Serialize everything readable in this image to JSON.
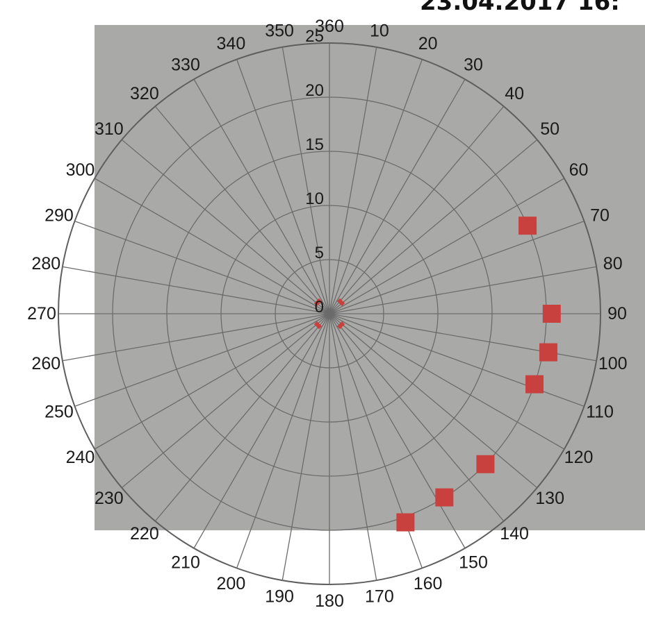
{
  "chart_data": {
    "type": "scatter",
    "subtype": "polar",
    "title": "23.04.2017 16:",
    "angle_ticks": [
      "360",
      "10",
      "20",
      "30",
      "40",
      "50",
      "60",
      "70",
      "80",
      "90",
      "100",
      "110",
      "120",
      "130",
      "140",
      "150",
      "160",
      "170",
      "180",
      "190",
      "200",
      "210",
      "220",
      "230",
      "240",
      "250",
      "260",
      "270",
      "280",
      "290",
      "300",
      "310",
      "320",
      "330",
      "340",
      "350"
    ],
    "radial_ticks": [
      "0",
      "5",
      "10",
      "15",
      "20",
      "25"
    ],
    "radial_range": [
      0,
      25
    ],
    "angle_direction": "clockwise",
    "zero_angle": "top",
    "background": "aerial photograph",
    "grid": true,
    "series": [
      {
        "points": [
          {
            "angle": 66,
            "r": 20
          },
          {
            "angle": 90,
            "r": 20.5
          },
          {
            "angle": 100,
            "r": 20.5
          },
          {
            "angle": 109,
            "r": 20
          },
          {
            "angle": 134,
            "r": 20
          },
          {
            "angle": 148,
            "r": 20
          },
          {
            "angle": 160,
            "r": 20.5
          }
        ],
        "color": "#c8413e"
      }
    ],
    "center_markers": [
      {
        "angle": 45,
        "r": 1.5
      },
      {
        "angle": 135,
        "r": 1.5
      },
      {
        "angle": 225,
        "r": 1.5
      },
      {
        "angle": 315,
        "r": 1.5
      }
    ]
  }
}
